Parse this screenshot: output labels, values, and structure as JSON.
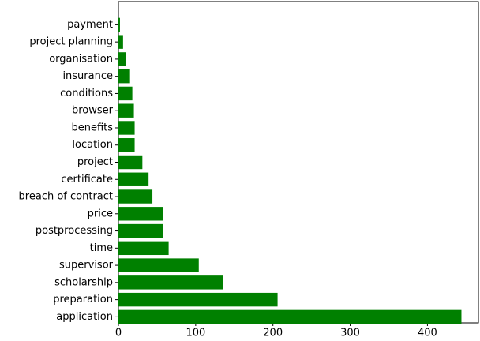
{
  "chart_data": {
    "type": "barh",
    "categories": [
      "application",
      "preparation",
      "scholarship",
      "supervisor",
      "time",
      "postprocessing",
      "price",
      "breach of contract",
      "certificate",
      "project",
      "location",
      "benefits",
      "browser",
      "conditions",
      "insurance",
      "organisation",
      "project planning",
      "payment"
    ],
    "values": [
      444,
      206,
      135,
      104,
      65,
      58,
      58,
      44,
      39,
      31,
      21,
      21,
      20,
      18,
      15,
      10,
      6,
      2
    ],
    "color": "#008000",
    "xlim": [
      0,
      466
    ],
    "xticks": [
      0,
      100,
      200,
      300,
      400
    ],
    "grid": false
  }
}
